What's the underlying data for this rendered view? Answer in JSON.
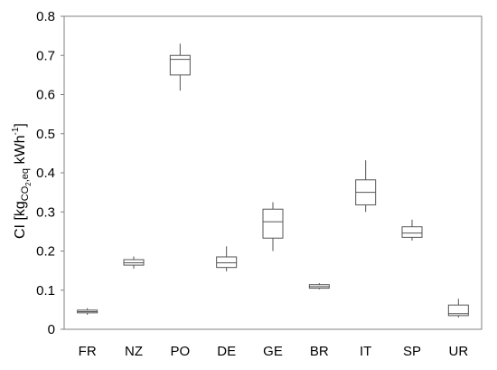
{
  "chart_data": {
    "type": "box",
    "categories": [
      "FR",
      "NZ",
      "PO",
      "DE",
      "GE",
      "BR",
      "IT",
      "SP",
      "UR"
    ],
    "boxes": [
      {
        "category": "FR",
        "min": 0.037,
        "q1": 0.042,
        "median": 0.045,
        "q3": 0.049,
        "max": 0.054
      },
      {
        "category": "NZ",
        "min": 0.155,
        "q1": 0.164,
        "median": 0.17,
        "q3": 0.178,
        "max": 0.186
      },
      {
        "category": "PO",
        "min": 0.61,
        "q1": 0.65,
        "median": 0.69,
        "q3": 0.7,
        "max": 0.73
      },
      {
        "category": "DE",
        "min": 0.148,
        "q1": 0.158,
        "median": 0.17,
        "q3": 0.185,
        "max": 0.212
      },
      {
        "category": "GE",
        "min": 0.2,
        "q1": 0.233,
        "median": 0.275,
        "q3": 0.307,
        "max": 0.325
      },
      {
        "category": "BR",
        "min": 0.102,
        "q1": 0.105,
        "median": 0.109,
        "q3": 0.114,
        "max": 0.118
      },
      {
        "category": "IT",
        "min": 0.3,
        "q1": 0.318,
        "median": 0.35,
        "q3": 0.382,
        "max": 0.432
      },
      {
        "category": "SP",
        "min": 0.227,
        "q1": 0.235,
        "median": 0.246,
        "q3": 0.262,
        "max": 0.28
      },
      {
        "category": "UR",
        "min": 0.03,
        "q1": 0.035,
        "median": 0.04,
        "q3": 0.062,
        "max": 0.078
      }
    ],
    "ylim": [
      0,
      0.8
    ],
    "yticks": [
      "0",
      "0.1",
      "0.2",
      "0.3",
      "0.4",
      "0.5",
      "0.6",
      "0.7",
      "0.8"
    ],
    "ylabel": {
      "base": "CI [kg",
      "sub_main": "CO",
      "sub_sub": "2",
      "sub_tail": ",eq",
      "unit": " kWh",
      "sup": "-1",
      "close": "]"
    },
    "xlabel": "",
    "title": "",
    "grid": false,
    "legend": "none"
  }
}
